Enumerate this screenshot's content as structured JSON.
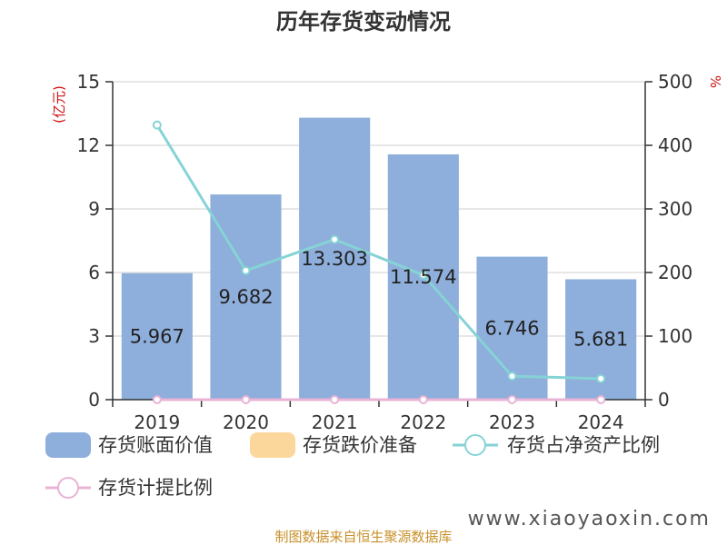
{
  "chart_data": {
    "type": "bar",
    "title": "历年存货变动情况",
    "categories": [
      "2019",
      "2020",
      "2021",
      "2022",
      "2023",
      "2024"
    ],
    "left_axis": {
      "unit": "(亿元)",
      "ylim": [
        0,
        15
      ],
      "ticks": [
        0,
        3,
        6,
        9,
        12,
        15
      ]
    },
    "right_axis": {
      "unit": "%",
      "ylim": [
        0,
        500
      ],
      "ticks": [
        0,
        100,
        200,
        300,
        400,
        500
      ]
    },
    "series": [
      {
        "name": "存货账面价值",
        "type": "bar",
        "axis": "left",
        "color": "#8eaedb",
        "values": [
          5.967,
          9.682,
          13.303,
          11.574,
          6.746,
          5.681
        ],
        "labels": [
          "5.967",
          "9.682",
          "13.303",
          "11.574",
          "6.746",
          "5.681"
        ]
      },
      {
        "name": "存货跌价准备",
        "type": "bar",
        "axis": "left",
        "color": "#fcd79c",
        "values": [
          0,
          0,
          0,
          0,
          0,
          0
        ]
      },
      {
        "name": "存货占净资产比例",
        "type": "line",
        "axis": "right",
        "color": "#86d3d6",
        "values": [
          432,
          203,
          252,
          196,
          37,
          33
        ]
      },
      {
        "name": "存货计提比例",
        "type": "line",
        "axis": "right",
        "color": "#e8b3d6",
        "values": [
          0,
          0,
          0,
          0,
          0,
          0
        ]
      }
    ],
    "grid": true,
    "legend_position": "bottom"
  },
  "watermark": "www.xiaoyaoxin.com",
  "source_note": "制图数据来自恒生聚源数据库"
}
